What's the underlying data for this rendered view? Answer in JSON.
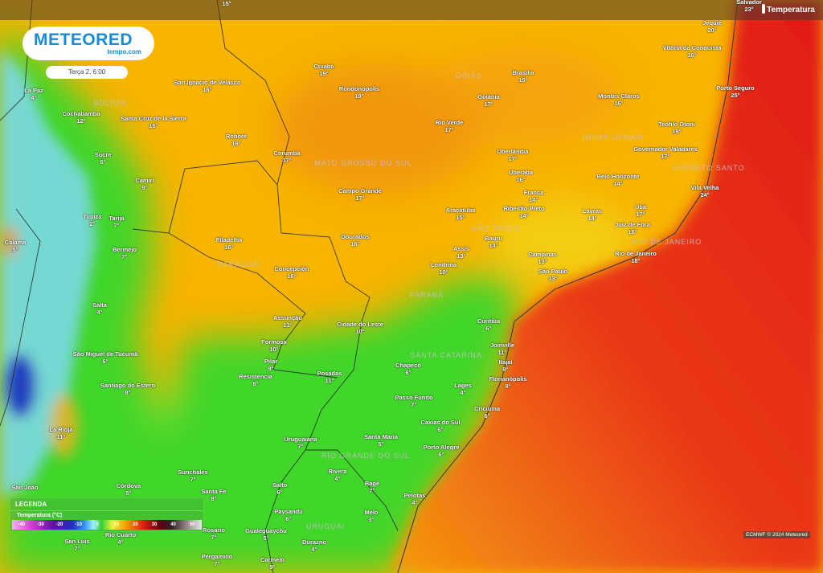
{
  "header": {
    "layer_name": "Temperatura",
    "thermometer_icon": "thermometer-icon"
  },
  "logo": {
    "brand": "METEORED",
    "sub": "tempo.com"
  },
  "datetime": "Terça 2, 6:00",
  "colors": {
    "ocean_warm": "#e3241a",
    "land_warm": "#f5b000",
    "cool": "#3fd62a",
    "cold": "#7fd8f0",
    "logo_blue": "#1b8ad3"
  },
  "edge_labels": [
    {
      "temp": "15°"
    }
  ],
  "cities": [
    {
      "name": "La Paz",
      "temp": "4°"
    },
    {
      "name": "Cochabamba",
      "temp": "12°"
    },
    {
      "name": "Sucre",
      "temp": "6°"
    },
    {
      "name": "Camiri",
      "temp": "9°"
    },
    {
      "name": "San Ignacio de Velasco",
      "temp": "16°"
    },
    {
      "name": "Santa Cruz de la Sierra",
      "temp": "16°"
    },
    {
      "name": "Roboré",
      "temp": "16°"
    },
    {
      "name": "Cuiabá",
      "temp": "19°"
    },
    {
      "name": "Rondonópolis",
      "temp": "19°"
    },
    {
      "name": "Corumbá",
      "temp": "17°"
    },
    {
      "name": "Campo Grande",
      "temp": "17°"
    },
    {
      "name": "Goiânia",
      "temp": "17°"
    },
    {
      "name": "Brasília",
      "temp": "15°"
    },
    {
      "name": "Rio Verde",
      "temp": "17°"
    },
    {
      "name": "Uberlândia",
      "temp": "17°"
    },
    {
      "name": "Uberaba",
      "temp": "16°"
    },
    {
      "name": "Franca",
      "temp": "14°"
    },
    {
      "name": "Ribeirão Preto",
      "temp": "14°"
    },
    {
      "name": "Araçatuba",
      "temp": "15°"
    },
    {
      "name": "Bauru",
      "temp": "14°"
    },
    {
      "name": "Assis",
      "temp": "13°"
    },
    {
      "name": "Londrina",
      "temp": "10°"
    },
    {
      "name": "Campinas",
      "temp": "13°"
    },
    {
      "name": "São Paulo",
      "temp": "13°"
    },
    {
      "name": "Lavras",
      "temp": "14°"
    },
    {
      "name": "Juiz de Fora",
      "temp": "16°"
    },
    {
      "name": "Ubá",
      "temp": "17°"
    },
    {
      "name": "Rio de Janeiro",
      "temp": "18°"
    },
    {
      "name": "Belo Horizonte",
      "temp": "14°"
    },
    {
      "name": "Governador Valadares",
      "temp": "17°"
    },
    {
      "name": "Teófilo Otoni",
      "temp": "19°"
    },
    {
      "name": "Montes Claros",
      "temp": "16°"
    },
    {
      "name": "Porto Seguro",
      "temp": "25°"
    },
    {
      "name": "Vitória da Conquista",
      "temp": "16°"
    },
    {
      "name": "Jequié",
      "temp": "20°"
    },
    {
      "name": "Vila Velha",
      "temp": "24°"
    },
    {
      "name": "Salvador",
      "temp": "23°"
    },
    {
      "name": "Tupiza",
      "temp": "2°"
    },
    {
      "name": "Tarija",
      "temp": "7°"
    },
    {
      "name": "Calama",
      "temp": "5°"
    },
    {
      "name": "Bermejo",
      "temp": "7°"
    },
    {
      "name": "Filadelfia",
      "temp": "16°"
    },
    {
      "name": "Dourados",
      "temp": "16°"
    },
    {
      "name": "Concepción",
      "temp": "16°"
    },
    {
      "name": "Salta",
      "temp": "4°"
    },
    {
      "name": "Assunção",
      "temp": "13°"
    },
    {
      "name": "Cidade do Leste",
      "temp": "10°"
    },
    {
      "name": "Formosa",
      "temp": "10°"
    },
    {
      "name": "Pilar",
      "temp": "9°"
    },
    {
      "name": "Resistencia",
      "temp": "8°"
    },
    {
      "name": "Posadas",
      "temp": "11°"
    },
    {
      "name": "São Miguel de Tucumã",
      "temp": "6°"
    },
    {
      "name": "Santiago do Estero",
      "temp": "8°"
    },
    {
      "name": "La Rioja",
      "temp": "11°"
    },
    {
      "name": "Curitiba",
      "temp": "6°"
    },
    {
      "name": "Joinville",
      "temp": "11°"
    },
    {
      "name": "Itajaí",
      "temp": "9°"
    },
    {
      "name": "Florianópolis",
      "temp": "9°"
    },
    {
      "name": "Chapecó",
      "temp": "6°"
    },
    {
      "name": "Lages",
      "temp": "4°"
    },
    {
      "name": "Passo Fundo",
      "temp": "7°"
    },
    {
      "name": "Criciúma",
      "temp": "6°"
    },
    {
      "name": "Caxias do Sul",
      "temp": "6°"
    },
    {
      "name": "Santa Maria",
      "temp": "5°"
    },
    {
      "name": "Porto Alegre",
      "temp": "6°"
    },
    {
      "name": "Uruguaiana",
      "temp": "7°"
    },
    {
      "name": "Sunchales",
      "temp": "7°"
    },
    {
      "name": "Rivera",
      "temp": "4°"
    },
    {
      "name": "Bagé",
      "temp": "7°"
    },
    {
      "name": "Salto",
      "temp": "6°"
    },
    {
      "name": "Santa Fe",
      "temp": "8°"
    },
    {
      "name": "Pelotas",
      "temp": "4°"
    },
    {
      "name": "Córdova",
      "temp": "5°"
    },
    {
      "name": "São João",
      "temp": ""
    },
    {
      "name": "Paysandú",
      "temp": "6°"
    },
    {
      "name": "Melo",
      "temp": "3°"
    },
    {
      "name": "Gualeguaychu",
      "temp": "5°"
    },
    {
      "name": "Rosario",
      "temp": "7°"
    },
    {
      "name": "San Luis",
      "temp": "7°"
    },
    {
      "name": "Rio Cuarto",
      "temp": "4°"
    },
    {
      "name": "Durazno",
      "temp": "4°"
    },
    {
      "name": "Pergamino",
      "temp": "7°"
    },
    {
      "name": "Carmelo",
      "temp": "9°"
    }
  ],
  "regions": [
    "BOLÍVIA",
    "MATO GROSSO DO SUL",
    "GOIÁS",
    "MINAS GERAIS",
    "ESPÍRITO SANTO",
    "SÃO PAULO",
    "RIO DE JANEIRO",
    "PARAGUAI",
    "PARANÁ",
    "SANTA CATARINA",
    "RIO GRANDE DO SUL",
    "URUGUAI"
  ],
  "legend": {
    "title": "LEGENDA",
    "variable": "Temperatura (°C)",
    "scale_labels": [
      "-40",
      "-30",
      "-20",
      "-10",
      "0",
      "10",
      "20",
      "30",
      "40",
      "50"
    ]
  },
  "credit": "ECMWF © 2024 Meteored"
}
